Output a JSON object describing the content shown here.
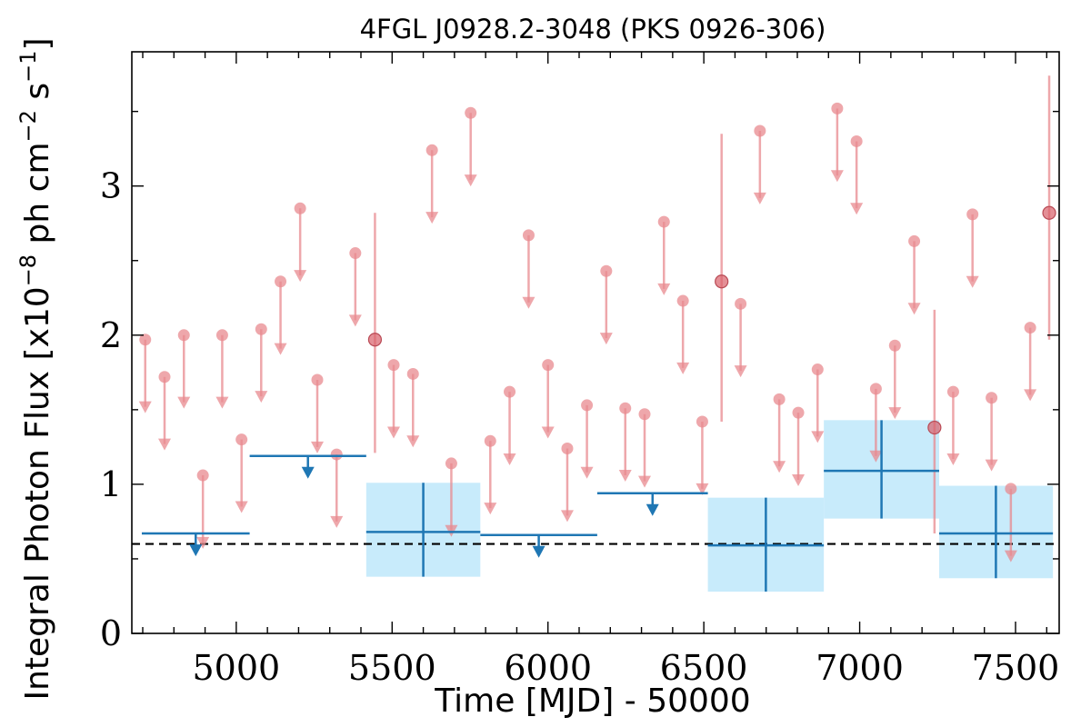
{
  "chart_data": {
    "type": "scatter",
    "title": "4FGL J0928.2-3048 (PKS 0926-306)",
    "xlabel": "Time [MJD] - 50000",
    "ylabel": "Integral Photon Flux [x10",
    "ylabel_exp": "−8",
    "ylabel_mid": " ph cm",
    "ylabel_exp2": "−2",
    "ylabel_mid2": " s",
    "ylabel_exp3": "−1",
    "ylabel_end": "]",
    "xlim": [
      4665,
      7640
    ],
    "ylim": [
      0,
      3.9
    ],
    "x_ticks": [
      5000,
      5500,
      6000,
      6500,
      7000,
      7500
    ],
    "y_ticks": [
      0,
      1,
      2,
      3
    ],
    "x_tick_labels": [
      "5000",
      "5500",
      "6000",
      "6500",
      "7000",
      "7500"
    ],
    "y_tick_labels": [
      "0",
      "1",
      "2",
      "3"
    ],
    "baseline": 0.6,
    "colors": {
      "short_bins": "#e8898f",
      "long_bins": "#1f77b4",
      "band": "#c8ebfb",
      "baseline": "#000000"
    },
    "short_bin_upper_limits": [
      {
        "x": 4708,
        "y": 1.97
      },
      {
        "x": 4770,
        "y": 1.72
      },
      {
        "x": 4832,
        "y": 2.0
      },
      {
        "x": 4893,
        "y": 1.06
      },
      {
        "x": 4955,
        "y": 2.0
      },
      {
        "x": 5017,
        "y": 1.3
      },
      {
        "x": 5080,
        "y": 2.04
      },
      {
        "x": 5142,
        "y": 2.36
      },
      {
        "x": 5205,
        "y": 2.85
      },
      {
        "x": 5260,
        "y": 1.7
      },
      {
        "x": 5322,
        "y": 1.2
      },
      {
        "x": 5382,
        "y": 2.55
      },
      {
        "x": 5505,
        "y": 1.8
      },
      {
        "x": 5567,
        "y": 1.74
      },
      {
        "x": 5628,
        "y": 3.24
      },
      {
        "x": 5690,
        "y": 1.14
      },
      {
        "x": 5752,
        "y": 3.49
      },
      {
        "x": 5815,
        "y": 1.29
      },
      {
        "x": 5877,
        "y": 1.62
      },
      {
        "x": 5938,
        "y": 2.67
      },
      {
        "x": 6000,
        "y": 1.8
      },
      {
        "x": 6062,
        "y": 1.24
      },
      {
        "x": 6125,
        "y": 1.53
      },
      {
        "x": 6187,
        "y": 2.43
      },
      {
        "x": 6248,
        "y": 1.51
      },
      {
        "x": 6310,
        "y": 1.47
      },
      {
        "x": 6372,
        "y": 2.76
      },
      {
        "x": 6433,
        "y": 2.23
      },
      {
        "x": 6495,
        "y": 1.42
      },
      {
        "x": 6618,
        "y": 2.21
      },
      {
        "x": 6680,
        "y": 3.37
      },
      {
        "x": 6742,
        "y": 1.57
      },
      {
        "x": 6803,
        "y": 1.48
      },
      {
        "x": 6865,
        "y": 1.77
      },
      {
        "x": 6928,
        "y": 3.52
      },
      {
        "x": 6990,
        "y": 3.3
      },
      {
        "x": 7052,
        "y": 1.64
      },
      {
        "x": 7113,
        "y": 1.93
      },
      {
        "x": 7175,
        "y": 2.63
      },
      {
        "x": 7300,
        "y": 1.62
      },
      {
        "x": 7362,
        "y": 2.81
      },
      {
        "x": 7423,
        "y": 1.58
      },
      {
        "x": 7485,
        "y": 0.97
      },
      {
        "x": 7547,
        "y": 2.05
      }
    ],
    "short_bin_detections": [
      {
        "x": 5445,
        "y": 1.97,
        "y_low": 1.21,
        "y_high": 2.82
      },
      {
        "x": 6557,
        "y": 2.36,
        "y_low": 1.42,
        "y_high": 3.35
      },
      {
        "x": 7240,
        "y": 1.38,
        "y_low": 0.67,
        "y_high": 2.17
      },
      {
        "x": 7608,
        "y": 2.82,
        "y_low": 1.97,
        "y_high": 3.74
      }
    ],
    "long_bin_upper_limits": [
      {
        "x_start": 4697,
        "x_end": 5043,
        "y": 0.67
      },
      {
        "x_start": 5043,
        "x_end": 5417,
        "y": 1.19
      },
      {
        "x_start": 5783,
        "x_end": 6158,
        "y": 0.66
      },
      {
        "x_start": 6158,
        "x_end": 6513,
        "y": 0.94
      }
    ],
    "long_bin_detections": [
      {
        "x_start": 5417,
        "x_end": 5783,
        "x": 5600,
        "y": 0.68,
        "y_low": 0.38,
        "y_high": 1.01
      },
      {
        "x_start": 6513,
        "x_end": 6885,
        "x": 6699,
        "y": 0.59,
        "y_low": 0.28,
        "y_high": 0.91
      },
      {
        "x_start": 6885,
        "x_end": 7255,
        "x": 7070,
        "y": 1.09,
        "y_low": 0.77,
        "y_high": 1.43
      },
      {
        "x_start": 7255,
        "x_end": 7620,
        "x": 7437,
        "y": 0.67,
        "y_low": 0.37,
        "y_high": 0.99
      }
    ]
  }
}
